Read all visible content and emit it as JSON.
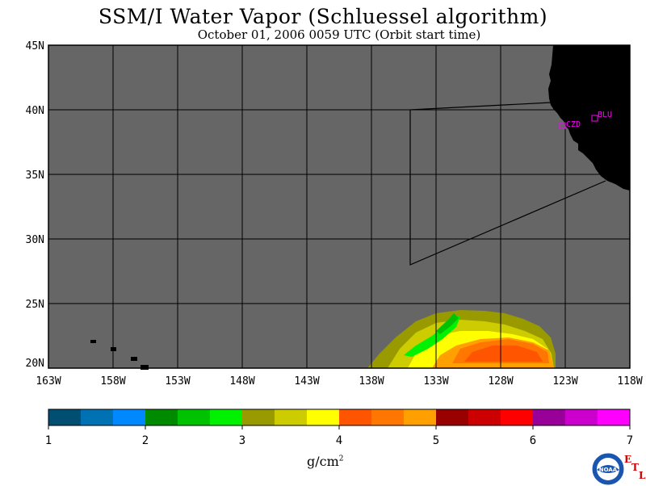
{
  "title": "SSM/I Water Vapor (Schluessel algorithm)",
  "subtitle": "October 01, 2006  0059 UTC  (Orbit start time)",
  "map": {
    "lat_labels": [
      "45N",
      "40N",
      "35N",
      "30N",
      "25N",
      "20N"
    ],
    "lon_labels": [
      "163W",
      "158W",
      "153W",
      "148W",
      "143W",
      "138W",
      "133W",
      "128W",
      "123W",
      "118W"
    ],
    "stations": [
      {
        "label": "CZD"
      },
      {
        "label": "BLU"
      }
    ],
    "colors": {
      "no_data": "#666666",
      "land": "#000000",
      "station": "#ff00ff"
    }
  },
  "colorbar": {
    "colors": [
      "#004f73",
      "#0071b3",
      "#0088ff",
      "#008a00",
      "#00c200",
      "#00f200",
      "#999900",
      "#cccc00",
      "#ffff00",
      "#ff5500",
      "#ff7700",
      "#ffa000",
      "#990000",
      "#cc0000",
      "#ff0000",
      "#990099",
      "#cc00cc",
      "#ff00ff"
    ],
    "tick_labels": [
      "1",
      "2",
      "3",
      "4",
      "5",
      "6",
      "7"
    ],
    "unit": "g/cm",
    "unit_sup": "2"
  },
  "logo": {
    "text": "NOAA",
    "etl_letters": [
      "E",
      "T",
      "L"
    ]
  }
}
